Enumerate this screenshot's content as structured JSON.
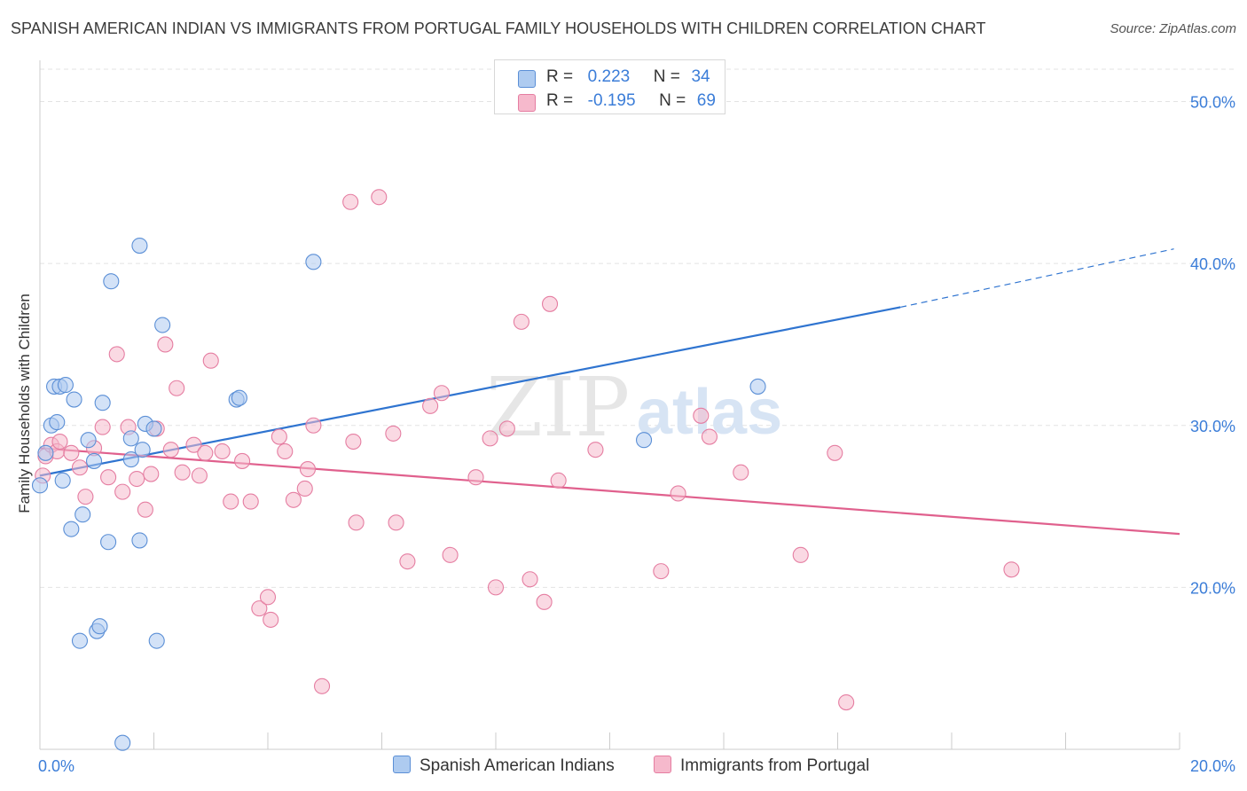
{
  "header": {
    "title": "SPANISH AMERICAN INDIAN VS IMMIGRANTS FROM PORTUGAL FAMILY HOUSEHOLDS WITH CHILDREN CORRELATION CHART",
    "source": "Source: ZipAtlas.com"
  },
  "watermark": {
    "zip": "ZIP",
    "atlas": "atlas"
  },
  "stats_legend": {
    "rows": [
      {
        "r_label": "R =",
        "r_value": "0.223",
        "n_label": "N =",
        "n_value": "34",
        "color": "#aecbf0"
      },
      {
        "r_label": "R =",
        "r_value": "-0.195",
        "n_label": "N =",
        "n_value": "69",
        "color": "#f6b9cc"
      }
    ]
  },
  "bottom_legend": [
    {
      "label": "Spanish American Indians",
      "color": "#aecbf0"
    },
    {
      "label": "Immigrants from Portugal",
      "color": "#f6b9cc"
    }
  ],
  "colors": {
    "blue_fill": "#aecbf0",
    "blue_stroke": "#5b8fd6",
    "blue_line": "#2f74d0",
    "pink_fill": "#f6b9cc",
    "pink_stroke": "#e57da1",
    "pink_line": "#e0608d",
    "grid": "#e3e3e3",
    "tick_label": "#3b7dd8"
  },
  "chart_data": {
    "type": "scatter",
    "title": "SPANISH AMERICAN INDIAN VS IMMIGRANTS FROM PORTUGAL FAMILY HOUSEHOLDS WITH CHILDREN CORRELATION CHART",
    "xlabel": "",
    "ylabel": "Family Households with Children",
    "xlim": [
      0,
      20
    ],
    "ylim": [
      10,
      52
    ],
    "x_ticks": [
      0,
      2,
      4,
      6,
      8,
      10,
      12,
      14,
      16,
      18,
      20
    ],
    "x_tick_labels": [
      {
        "value": 0,
        "label": "0.0%"
      },
      {
        "value": 20,
        "label": "20.0%"
      }
    ],
    "y_ticks": [
      20,
      30,
      40,
      50
    ],
    "y_tick_labels": [
      "20.0%",
      "30.0%",
      "40.0%",
      "50.0%"
    ],
    "grid": true,
    "series": [
      {
        "name": "Spanish American Indians",
        "R": 0.223,
        "N": 34,
        "trend": {
          "x0": 0,
          "y0": 26.9,
          "x1": 15.1,
          "y1": 37.3,
          "dashed_to_x": 19.9,
          "dashed_to_y": 40.9
        },
        "points": [
          [
            0.0,
            26.3
          ],
          [
            0.1,
            28.3
          ],
          [
            0.2,
            30.0
          ],
          [
            0.25,
            32.4
          ],
          [
            0.3,
            30.2
          ],
          [
            0.35,
            32.4
          ],
          [
            0.4,
            26.6
          ],
          [
            0.45,
            32.5
          ],
          [
            0.55,
            23.6
          ],
          [
            0.6,
            31.6
          ],
          [
            0.7,
            16.7
          ],
          [
            0.75,
            24.5
          ],
          [
            0.85,
            29.1
          ],
          [
            0.95,
            27.8
          ],
          [
            1.0,
            17.3
          ],
          [
            1.05,
            17.6
          ],
          [
            1.1,
            31.4
          ],
          [
            1.2,
            22.8
          ],
          [
            1.25,
            38.9
          ],
          [
            1.45,
            10.4
          ],
          [
            1.6,
            29.2
          ],
          [
            1.6,
            27.9
          ],
          [
            1.75,
            22.9
          ],
          [
            1.75,
            41.1
          ],
          [
            1.8,
            28.5
          ],
          [
            1.85,
            30.1
          ],
          [
            2.0,
            29.8
          ],
          [
            2.05,
            16.7
          ],
          [
            2.15,
            36.2
          ],
          [
            3.45,
            31.6
          ],
          [
            3.5,
            31.7
          ],
          [
            4.8,
            40.1
          ],
          [
            10.6,
            29.1
          ],
          [
            12.6,
            32.4
          ]
        ]
      },
      {
        "name": "Immigrants from Portugal",
        "R": -0.195,
        "N": 69,
        "trend": {
          "x0": 0,
          "y0": 28.6,
          "x1": 20.0,
          "y1": 23.3
        },
        "points": [
          [
            0.05,
            26.9
          ],
          [
            0.1,
            28.1
          ],
          [
            0.2,
            28.8
          ],
          [
            0.3,
            28.4
          ],
          [
            0.35,
            29.0
          ],
          [
            0.55,
            28.3
          ],
          [
            0.7,
            27.4
          ],
          [
            0.8,
            25.6
          ],
          [
            0.95,
            28.6
          ],
          [
            1.1,
            29.9
          ],
          [
            1.2,
            26.8
          ],
          [
            1.35,
            34.4
          ],
          [
            1.45,
            25.9
          ],
          [
            1.55,
            29.9
          ],
          [
            1.7,
            26.7
          ],
          [
            1.85,
            24.8
          ],
          [
            1.95,
            27.0
          ],
          [
            2.05,
            29.8
          ],
          [
            2.2,
            35.0
          ],
          [
            2.3,
            28.5
          ],
          [
            2.4,
            32.3
          ],
          [
            2.5,
            27.1
          ],
          [
            2.7,
            28.8
          ],
          [
            2.8,
            26.9
          ],
          [
            2.9,
            28.3
          ],
          [
            3.0,
            34.0
          ],
          [
            3.2,
            28.4
          ],
          [
            3.35,
            25.3
          ],
          [
            3.55,
            27.8
          ],
          [
            3.7,
            25.3
          ],
          [
            3.85,
            18.7
          ],
          [
            4.0,
            19.4
          ],
          [
            4.05,
            18.0
          ],
          [
            4.2,
            29.3
          ],
          [
            4.3,
            28.4
          ],
          [
            4.45,
            25.4
          ],
          [
            4.65,
            26.1
          ],
          [
            4.7,
            27.3
          ],
          [
            4.8,
            30.0
          ],
          [
            4.95,
            13.9
          ],
          [
            5.45,
            43.8
          ],
          [
            5.5,
            29.0
          ],
          [
            5.55,
            24.0
          ],
          [
            5.95,
            44.1
          ],
          [
            6.2,
            29.5
          ],
          [
            6.25,
            24.0
          ],
          [
            6.45,
            21.6
          ],
          [
            6.85,
            31.2
          ],
          [
            7.05,
            32.0
          ],
          [
            7.2,
            22.0
          ],
          [
            7.65,
            26.8
          ],
          [
            7.9,
            29.2
          ],
          [
            8.0,
            20.0
          ],
          [
            8.2,
            29.8
          ],
          [
            8.45,
            36.4
          ],
          [
            8.6,
            20.5
          ],
          [
            8.85,
            19.1
          ],
          [
            8.95,
            37.5
          ],
          [
            9.1,
            26.6
          ],
          [
            9.75,
            28.5
          ],
          [
            10.9,
            21.0
          ],
          [
            11.2,
            25.8
          ],
          [
            11.6,
            30.6
          ],
          [
            11.75,
            29.3
          ],
          [
            12.3,
            27.1
          ],
          [
            13.35,
            22.0
          ],
          [
            13.95,
            28.3
          ],
          [
            14.15,
            12.9
          ],
          [
            17.05,
            21.1
          ]
        ]
      }
    ]
  }
}
